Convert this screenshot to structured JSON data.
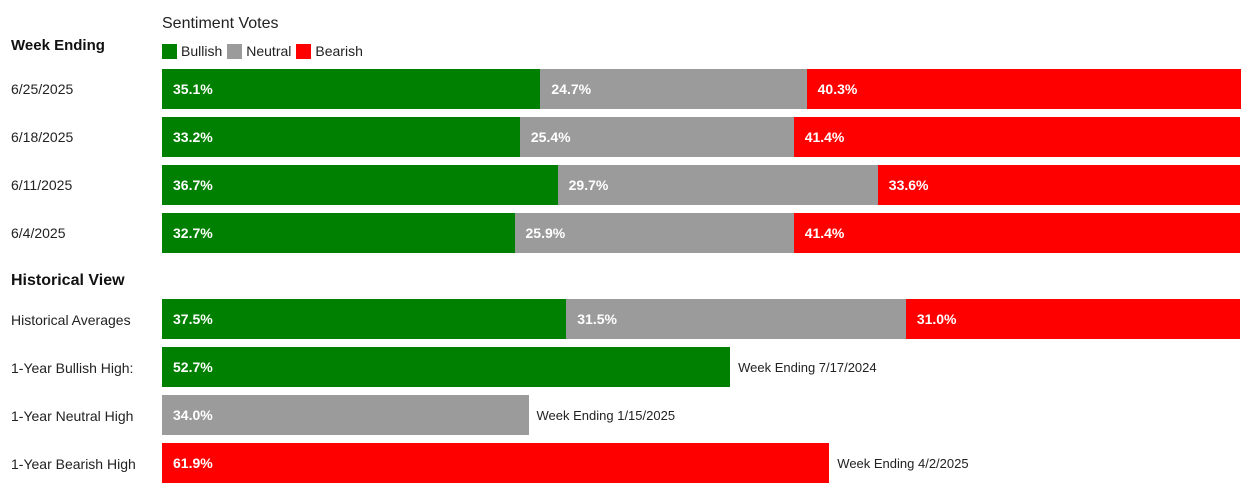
{
  "chart_title": "Sentiment Votes",
  "legend": [
    {
      "label": "Bullish",
      "color": "#008000"
    },
    {
      "label": "Neutral",
      "color": "#9b9b9b"
    },
    {
      "label": "Bearish",
      "color": "#ff0000"
    }
  ],
  "week_heading": "Week Ending",
  "historical_heading": "Historical View",
  "chart_data": {
    "type": "bar",
    "orientation": "horizontal",
    "stacked": true,
    "units": "%",
    "categories": [
      "6/25/2025",
      "6/18/2025",
      "6/11/2025",
      "6/4/2025"
    ],
    "series": [
      {
        "name": "Bullish",
        "color": "#008000",
        "values": [
          35.1,
          33.2,
          36.7,
          32.7
        ],
        "labels": [
          "35.1%",
          "33.2%",
          "36.7%",
          "32.7%"
        ]
      },
      {
        "name": "Neutral",
        "color": "#9b9b9b",
        "values": [
          24.7,
          25.4,
          29.7,
          25.9
        ],
        "labels": [
          "24.7%",
          "25.4%",
          "29.7%",
          "25.9%"
        ]
      },
      {
        "name": "Bearish",
        "color": "#ff0000",
        "values": [
          40.3,
          41.4,
          33.6,
          41.4
        ],
        "labels": [
          "40.3%",
          "41.4%",
          "33.6%",
          "41.4%"
        ]
      }
    ],
    "historical": {
      "averages": {
        "label": "Historical Averages",
        "values": [
          37.5,
          31.5,
          31.0
        ],
        "labels": [
          "37.5%",
          "31.5%",
          "31.0%"
        ]
      },
      "highs": [
        {
          "label": "1-Year Bullish High:",
          "series": "Bullish",
          "color": "#008000",
          "value": 52.7,
          "value_label": "52.7%",
          "note": "Week Ending 7/17/2024"
        },
        {
          "label": "1-Year Neutral High",
          "series": "Neutral",
          "color": "#9b9b9b",
          "value": 34.0,
          "value_label": "34.0%",
          "note": "Week Ending 1/15/2025"
        },
        {
          "label": "1-Year Bearish High",
          "series": "Bearish",
          "color": "#ff0000",
          "value": 61.9,
          "value_label": "61.9%",
          "note": "Week Ending 4/2/2025"
        }
      ]
    }
  }
}
